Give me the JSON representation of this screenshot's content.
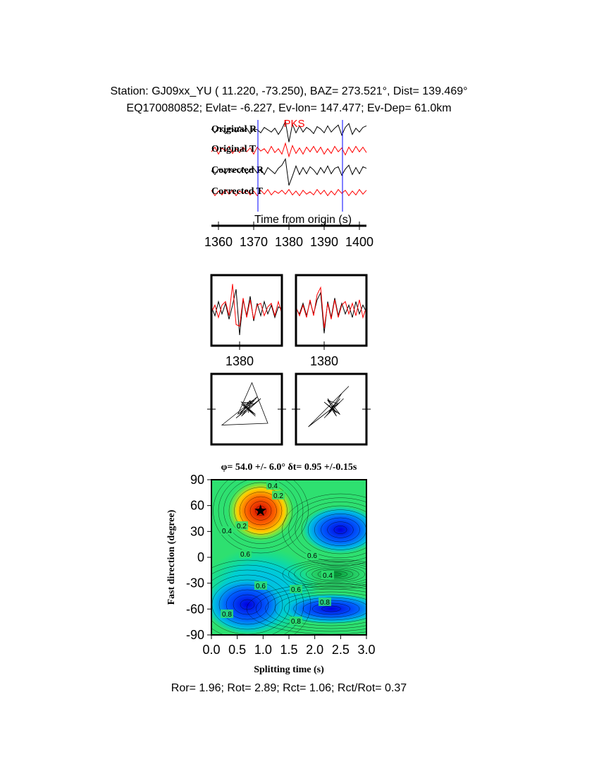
{
  "header": {
    "station": "Station: GJ09xx_YU (  11.220,  -73.250), BAZ=  273.521°, Dist=  139.469°",
    "event": "EQ170080852; Evlat=  -6.227, Ev-lon= 147.477; Ev-Dep= 61.0km"
  },
  "chart_data": [
    {
      "type": "line",
      "x_label": "Time from origin (s)",
      "x": [
        1358,
        1359,
        1360,
        1361,
        1362,
        1363,
        1364,
        1365,
        1366,
        1367,
        1368,
        1369,
        1370,
        1371,
        1372,
        1373,
        1374,
        1375,
        1376,
        1377,
        1378,
        1379,
        1380,
        1381,
        1382,
        1383,
        1384,
        1385,
        1386,
        1387,
        1388,
        1389,
        1390,
        1391,
        1392,
        1393,
        1394,
        1395,
        1396,
        1397,
        1398,
        1399,
        1400,
        1401,
        1402
      ],
      "xlim": [
        1358,
        1402
      ],
      "xticks": [
        1360,
        1370,
        1380,
        1390,
        1400
      ],
      "series": [
        {
          "name": "Original R",
          "color": "#000000",
          "values": [
            0.2,
            -0.3,
            0.4,
            0.1,
            -0.4,
            0.3,
            0.2,
            -0.2,
            0.5,
            -0.1,
            0.3,
            -0.4,
            0.2,
            0.1,
            -0.3,
            0.4,
            0.1,
            -0.2,
            0.3,
            -0.5,
            0.2,
            1.2,
            -1.5,
            0.8,
            -0.3,
            0.6,
            -0.2,
            0.4,
            0.1,
            -0.4,
            0.5,
            0.2,
            -0.3,
            0.6,
            -0.2,
            0.3,
            0.7,
            -0.6,
            0.4,
            0.9,
            -0.5,
            0.3,
            -0.2,
            0.4,
            0.6
          ]
        },
        {
          "name": "Original T",
          "color": "#ff0000",
          "values": [
            -0.2,
            0.4,
            -0.5,
            0.3,
            -0.1,
            0.5,
            -0.4,
            0.2,
            -0.3,
            0.4,
            -0.2,
            0.3,
            -0.5,
            0.4,
            -0.1,
            0.2,
            -0.4,
            0.5,
            -0.3,
            0.2,
            -0.5,
            0.9,
            -0.8,
            0.6,
            -0.4,
            0.3,
            -0.5,
            0.4,
            -0.2,
            0.5,
            -0.3,
            0.4,
            -0.5,
            0.2,
            -0.4,
            0.5,
            -0.2,
            0.3,
            -0.6,
            0.4,
            -0.3,
            0.5,
            -0.2,
            0.4,
            -0.3
          ]
        },
        {
          "name": "Corrected R",
          "color": "#000000",
          "values": [
            0.1,
            -0.4,
            0.3,
            0.2,
            -0.3,
            0.4,
            -0.1,
            0.3,
            -0.2,
            0.5,
            -0.3,
            0.2,
            0.4,
            -0.2,
            0.3,
            -0.4,
            0.5,
            0.1,
            -0.3,
            0.4,
            0.8,
            1.6,
            -1.8,
            -0.6,
            0.7,
            -0.4,
            0.5,
            -0.3,
            0.6,
            0.2,
            -0.4,
            0.5,
            -0.2,
            0.7,
            -0.3,
            0.4,
            0.6,
            -0.5,
            0.3,
            0.8,
            -0.4,
            0.5,
            -0.3,
            0.6,
            0.4
          ]
        },
        {
          "name": "Corrected T",
          "color": "#ff0000",
          "values": [
            0.3,
            -0.4,
            0.2,
            -0.3,
            0.4,
            -0.2,
            0.3,
            -0.4,
            0.2,
            -0.1,
            0.3,
            -0.3,
            0.2,
            -0.4,
            0.3,
            -0.2,
            0.4,
            -0.3,
            0.2,
            -0.1,
            0.3,
            -0.2,
            0.4,
            -0.3,
            0.2,
            -0.4,
            0.3,
            -0.2,
            0.1,
            -0.3,
            0.4,
            -0.2,
            0.3,
            -0.4,
            0.2,
            -0.3,
            0.4,
            -0.1,
            0.3,
            -0.4,
            0.2,
            -0.3,
            0.4,
            -0.2,
            0.3
          ]
        }
      ],
      "phase": {
        "label": "PKS",
        "x": 1381.5,
        "color": "#ff0000"
      },
      "window": {
        "x": [
          1371.2,
          1395.2
        ],
        "color": "#0000ff"
      }
    },
    {
      "type": "window",
      "x": [
        1372,
        1373,
        1374,
        1375,
        1376,
        1377,
        1378,
        1379,
        1380,
        1381,
        1382,
        1383,
        1384,
        1385,
        1386,
        1387,
        1388,
        1389,
        1390,
        1391,
        1392
      ],
      "xlim": [
        1372,
        1392
      ],
      "xticks": [
        1380
      ],
      "ylim": [
        -2,
        2
      ],
      "panels": [
        {
          "series": [
            {
              "color": "#000000",
              "values": [
                0.2,
                -0.3,
                0.5,
                -0.2,
                0.4,
                -0.5,
                0.3,
                1.2,
                -1.4,
                0.6,
                -0.3,
                0.8,
                -0.6,
                0.4,
                -0.3,
                0.5,
                -0.2,
                0.3,
                -0.4,
                0.2,
                0.1
              ]
            },
            {
              "color": "#ff0000",
              "values": [
                -0.1,
                0.3,
                -0.4,
                0.3,
                0.5,
                -0.3,
                1.5,
                -0.8,
                -0.9,
                0.7,
                -0.4,
                0.6,
                -0.5,
                0.3,
                0.4,
                -0.3,
                0.2,
                0.4,
                -0.3,
                0.5,
                -0.2
              ]
            }
          ]
        },
        {
          "series": [
            {
              "color": "#000000",
              "values": [
                0.1,
                -0.2,
                0.4,
                -0.3,
                0.5,
                -0.2,
                0.6,
                1.0,
                -1.3,
                0.5,
                -0.4,
                0.7,
                -0.3,
                0.4,
                -0.2,
                0.3,
                -0.4,
                0.5,
                -0.2,
                0.3,
                -0.1
              ]
            },
            {
              "color": "#ff0000",
              "values": [
                0.2,
                -0.3,
                0.3,
                -0.4,
                0.6,
                -0.3,
                0.9,
                1.3,
                -1.0,
                0.4,
                -0.5,
                0.6,
                -0.4,
                0.3,
                0.5,
                -0.2,
                0.4,
                -0.3,
                0.6,
                -0.4,
                0.2
              ]
            }
          ]
        }
      ]
    },
    {
      "type": "contour",
      "title": "φ= 54.0 +/- 6.0° δt= 0.95 +/-0.15s",
      "x_label": "Splitting time (s)",
      "y_label": "Fast direction (degree)",
      "xlim": [
        0,
        3
      ],
      "ylim": [
        -90,
        90
      ],
      "xticks": [
        {
          "value": 0,
          "label": "0.0"
        },
        0.5,
        {
          "value": 1,
          "label": "1.0"
        },
        1.5,
        {
          "value": 2,
          "label": "2.0"
        },
        2.5,
        {
          "value": 3,
          "label": "3.0"
        }
      ],
      "yticks": [
        -90,
        -60,
        -30,
        0,
        30,
        60,
        90
      ],
      "best": {
        "x": 0.95,
        "y": 54
      },
      "contour_labels": [
        0.4,
        0.2,
        0.2,
        0.4,
        0.6,
        0.6,
        0.4,
        0.6,
        0.8,
        0.8,
        0.6,
        0.8
      ]
    }
  ],
  "footer": "Ror= 1.96; Rot= 2.89; Rct= 1.06; Rct/Rot= 0.37"
}
